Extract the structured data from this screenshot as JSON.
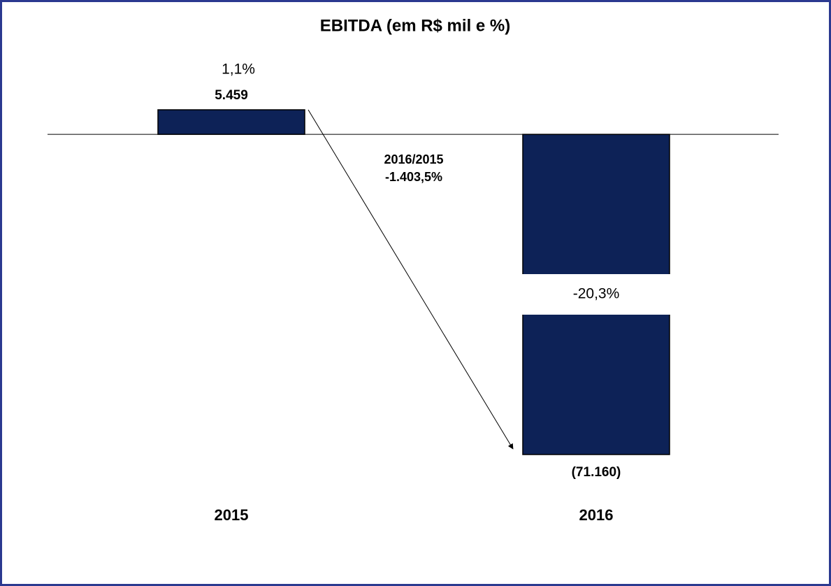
{
  "chart_data": {
    "type": "bar",
    "title": "EBITDA (em R$ mil e %)",
    "categories": [
      "2015",
      "2016"
    ],
    "values": [
      5459,
      -71160
    ],
    "value_labels": [
      "5.459",
      "(71.160)"
    ],
    "margin_values": [
      1.1,
      -20.3
    ],
    "margin_labels": [
      "1,1%",
      "-20,3%"
    ],
    "color": "#0d2257",
    "variation": {
      "label": "2016/2015",
      "value": -1403.5,
      "value_label": "-1.403,5%"
    }
  }
}
